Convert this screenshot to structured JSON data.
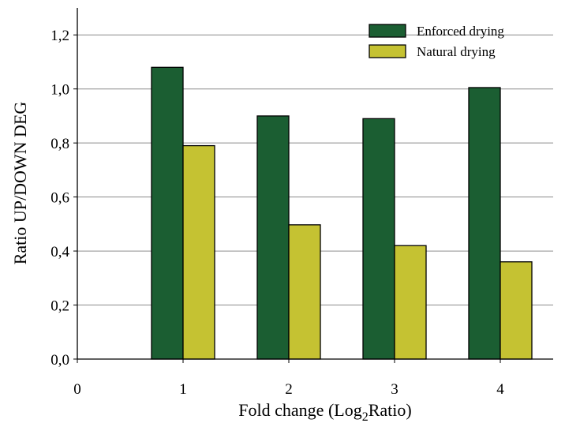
{
  "chart_data": {
    "type": "bar",
    "categories": [
      "1",
      "2",
      "3",
      "4"
    ],
    "series": [
      {
        "name": "Enforced drying",
        "color": "#1b5e32",
        "values": [
          1.08,
          0.9,
          0.89,
          1.005
        ]
      },
      {
        "name": "Natural drying",
        "color": "#c5c232",
        "values": [
          0.79,
          0.497,
          0.42,
          0.36
        ]
      }
    ],
    "x_ticks": [
      "0",
      "1",
      "2",
      "3",
      "4"
    ],
    "y_ticks": [
      "0,0",
      "0,2",
      "0,4",
      "0,6",
      "0,8",
      "1,0",
      "1,2"
    ],
    "y_tick_values": [
      0,
      0.2,
      0.4,
      0.6,
      0.8,
      1.0,
      1.2
    ],
    "ylim": [
      0,
      1.3
    ],
    "xlim": [
      0,
      4.5
    ],
    "gridlines": "horizontal",
    "legend_position": "top-right",
    "xlabel_main": "Fold change (Log",
    "xlabel_sub": "2",
    "xlabel_tail": "Ratio)",
    "ylabel": "Ratio UP/DOWN DEG"
  }
}
